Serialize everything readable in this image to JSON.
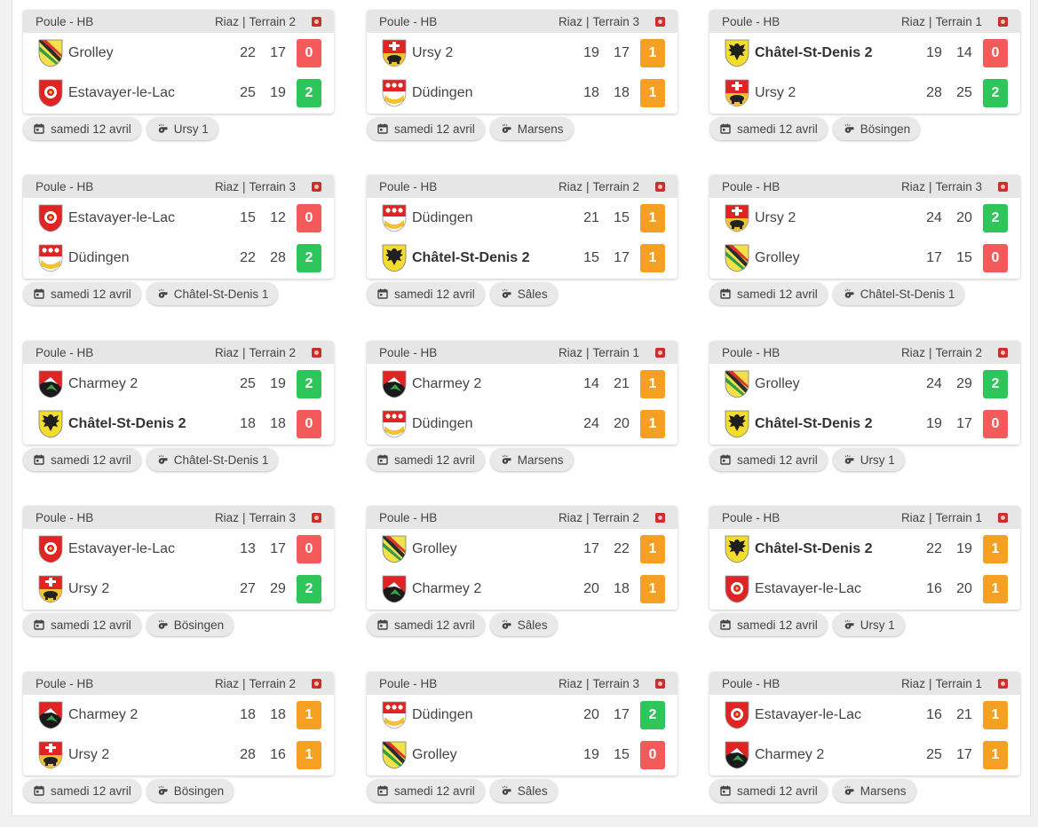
{
  "colors": {
    "win": "#2ec65a",
    "draw": "#f6a023",
    "loss": "#f45a5a",
    "header": "#e6e6e6"
  },
  "icons": {
    "date": "calendar-icon",
    "referee": "whistle-icon",
    "stream": "stream-icon"
  },
  "matches": [
    {
      "group": "Poule - HB",
      "location": "Riaz",
      "field": "Terrain 2",
      "date": "samedi 12 avril",
      "referee": "Ursy 1",
      "teams": [
        {
          "name": "Grolley",
          "logo": "grolley",
          "bold": false,
          "set1": "22",
          "set2": "17",
          "points": "0",
          "result": "loss"
        },
        {
          "name": "Estavayer-le-Lac",
          "logo": "estavayer",
          "bold": false,
          "set1": "25",
          "set2": "19",
          "points": "2",
          "result": "win"
        }
      ]
    },
    {
      "group": "Poule - HB",
      "location": "Riaz",
      "field": "Terrain 3",
      "date": "samedi 12 avril",
      "referee": "Marsens",
      "teams": [
        {
          "name": "Ursy 2",
          "logo": "ursy",
          "bold": false,
          "set1": "19",
          "set2": "17",
          "points": "1",
          "result": "draw"
        },
        {
          "name": "Düdingen",
          "logo": "dudingen",
          "bold": false,
          "set1": "18",
          "set2": "18",
          "points": "1",
          "result": "draw"
        }
      ]
    },
    {
      "group": "Poule - HB",
      "location": "Riaz",
      "field": "Terrain 1",
      "date": "samedi 12 avril",
      "referee": "Bösingen",
      "teams": [
        {
          "name": "Châtel-St-Denis 2",
          "logo": "chatel",
          "bold": true,
          "set1": "19",
          "set2": "14",
          "points": "0",
          "result": "loss"
        },
        {
          "name": "Ursy 2",
          "logo": "ursy",
          "bold": false,
          "set1": "28",
          "set2": "25",
          "points": "2",
          "result": "win"
        }
      ]
    },
    {
      "group": "Poule - HB",
      "location": "Riaz",
      "field": "Terrain 3",
      "date": "samedi 12 avril",
      "referee": "Châtel-St-Denis 1",
      "teams": [
        {
          "name": "Estavayer-le-Lac",
          "logo": "estavayer",
          "bold": false,
          "set1": "15",
          "set2": "12",
          "points": "0",
          "result": "loss"
        },
        {
          "name": "Düdingen",
          "logo": "dudingen",
          "bold": false,
          "set1": "22",
          "set2": "28",
          "points": "2",
          "result": "win"
        }
      ]
    },
    {
      "group": "Poule - HB",
      "location": "Riaz",
      "field": "Terrain 2",
      "date": "samedi 12 avril",
      "referee": "Sâles",
      "teams": [
        {
          "name": "Düdingen",
          "logo": "dudingen",
          "bold": false,
          "set1": "21",
          "set2": "15",
          "points": "1",
          "result": "draw"
        },
        {
          "name": "Châtel-St-Denis 2",
          "logo": "chatel",
          "bold": true,
          "set1": "15",
          "set2": "17",
          "points": "1",
          "result": "draw"
        }
      ]
    },
    {
      "group": "Poule - HB",
      "location": "Riaz",
      "field": "Terrain 3",
      "date": "samedi 12 avril",
      "referee": "Châtel-St-Denis 1",
      "teams": [
        {
          "name": "Ursy 2",
          "logo": "ursy",
          "bold": false,
          "set1": "24",
          "set2": "20",
          "points": "2",
          "result": "win"
        },
        {
          "name": "Grolley",
          "logo": "grolley",
          "bold": false,
          "set1": "17",
          "set2": "15",
          "points": "0",
          "result": "loss"
        }
      ]
    },
    {
      "group": "Poule - HB",
      "location": "Riaz",
      "field": "Terrain 2",
      "date": "samedi 12 avril",
      "referee": "Châtel-St-Denis 1",
      "teams": [
        {
          "name": "Charmey 2",
          "logo": "charmey",
          "bold": false,
          "set1": "25",
          "set2": "19",
          "points": "2",
          "result": "win"
        },
        {
          "name": "Châtel-St-Denis 2",
          "logo": "chatel",
          "bold": true,
          "set1": "18",
          "set2": "18",
          "points": "0",
          "result": "loss"
        }
      ]
    },
    {
      "group": "Poule - HB",
      "location": "Riaz",
      "field": "Terrain 1",
      "date": "samedi 12 avril",
      "referee": "Marsens",
      "teams": [
        {
          "name": "Charmey 2",
          "logo": "charmey",
          "bold": false,
          "set1": "14",
          "set2": "21",
          "points": "1",
          "result": "draw"
        },
        {
          "name": "Düdingen",
          "logo": "dudingen",
          "bold": false,
          "set1": "24",
          "set2": "20",
          "points": "1",
          "result": "draw"
        }
      ]
    },
    {
      "group": "Poule - HB",
      "location": "Riaz",
      "field": "Terrain 2",
      "date": "samedi 12 avril",
      "referee": "Ursy 1",
      "teams": [
        {
          "name": "Grolley",
          "logo": "grolley",
          "bold": false,
          "set1": "24",
          "set2": "29",
          "points": "2",
          "result": "win"
        },
        {
          "name": "Châtel-St-Denis 2",
          "logo": "chatel",
          "bold": true,
          "set1": "19",
          "set2": "17",
          "points": "0",
          "result": "loss"
        }
      ]
    },
    {
      "group": "Poule - HB",
      "location": "Riaz",
      "field": "Terrain 3",
      "date": "samedi 12 avril",
      "referee": "Bösingen",
      "teams": [
        {
          "name": "Estavayer-le-Lac",
          "logo": "estavayer",
          "bold": false,
          "set1": "13",
          "set2": "17",
          "points": "0",
          "result": "loss"
        },
        {
          "name": "Ursy 2",
          "logo": "ursy",
          "bold": false,
          "set1": "27",
          "set2": "29",
          "points": "2",
          "result": "win"
        }
      ]
    },
    {
      "group": "Poule - HB",
      "location": "Riaz",
      "field": "Terrain 2",
      "date": "samedi 12 avril",
      "referee": "Sâles",
      "teams": [
        {
          "name": "Grolley",
          "logo": "grolley",
          "bold": false,
          "set1": "17",
          "set2": "22",
          "points": "1",
          "result": "draw"
        },
        {
          "name": "Charmey 2",
          "logo": "charmey",
          "bold": false,
          "set1": "20",
          "set2": "18",
          "points": "1",
          "result": "draw"
        }
      ]
    },
    {
      "group": "Poule - HB",
      "location": "Riaz",
      "field": "Terrain 1",
      "date": "samedi 12 avril",
      "referee": "Ursy 1",
      "teams": [
        {
          "name": "Châtel-St-Denis 2",
          "logo": "chatel",
          "bold": true,
          "set1": "22",
          "set2": "19",
          "points": "1",
          "result": "draw"
        },
        {
          "name": "Estavayer-le-Lac",
          "logo": "estavayer",
          "bold": false,
          "set1": "16",
          "set2": "20",
          "points": "1",
          "result": "draw"
        }
      ]
    },
    {
      "group": "Poule - HB",
      "location": "Riaz",
      "field": "Terrain 2",
      "date": "samedi 12 avril",
      "referee": "Bösingen",
      "teams": [
        {
          "name": "Charmey 2",
          "logo": "charmey",
          "bold": false,
          "set1": "18",
          "set2": "18",
          "points": "1",
          "result": "draw"
        },
        {
          "name": "Ursy 2",
          "logo": "ursy",
          "bold": false,
          "set1": "28",
          "set2": "16",
          "points": "1",
          "result": "draw"
        }
      ]
    },
    {
      "group": "Poule - HB",
      "location": "Riaz",
      "field": "Terrain 3",
      "date": "samedi 12 avril",
      "referee": "Sâles",
      "teams": [
        {
          "name": "Düdingen",
          "logo": "dudingen",
          "bold": false,
          "set1": "20",
          "set2": "17",
          "points": "2",
          "result": "win"
        },
        {
          "name": "Grolley",
          "logo": "grolley",
          "bold": false,
          "set1": "19",
          "set2": "15",
          "points": "0",
          "result": "loss"
        }
      ]
    },
    {
      "group": "Poule - HB",
      "location": "Riaz",
      "field": "Terrain 1",
      "date": "samedi 12 avril",
      "referee": "Marsens",
      "teams": [
        {
          "name": "Estavayer-le-Lac",
          "logo": "estavayer",
          "bold": false,
          "set1": "16",
          "set2": "21",
          "points": "1",
          "result": "draw"
        },
        {
          "name": "Charmey 2",
          "logo": "charmey",
          "bold": false,
          "set1": "25",
          "set2": "17",
          "points": "1",
          "result": "draw"
        }
      ]
    }
  ]
}
